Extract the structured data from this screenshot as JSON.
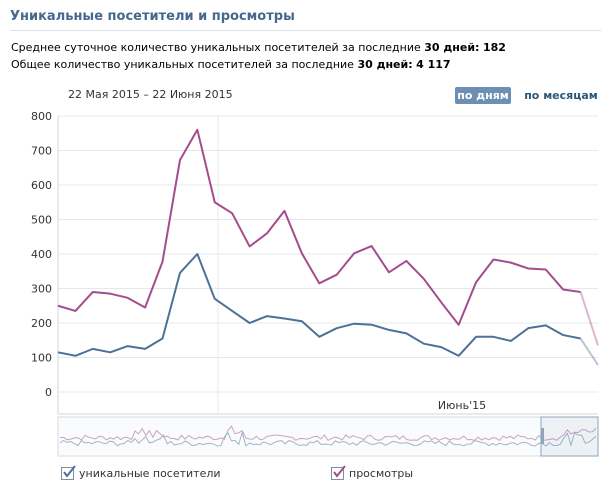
{
  "header": {
    "title": "Уникальные посетители и просмотры"
  },
  "stats": {
    "avg_prefix": "Среднее суточное количество уникальных посетителей за последние ",
    "avg_days": "30 дней:",
    "avg_value": "182",
    "total_prefix": "Общее количество уникальных посетителей за последние ",
    "total_days": "30 дней:",
    "total_value": "4 117"
  },
  "controls": {
    "date_range": "22 Мая 2015 – 22 Июня 2015",
    "by_day": "по дням",
    "by_month": "по месяцам"
  },
  "chart_data": {
    "type": "line",
    "ylim": [
      0,
      800
    ],
    "y_ticks": [
      "0",
      "100",
      "200",
      "300",
      "400",
      "500",
      "600",
      "700",
      "800"
    ],
    "x_tick_label": "Июнь'15",
    "series": [
      {
        "name": "уникальные посетители",
        "color": "#4d7198",
        "values": [
          115,
          105,
          125,
          115,
          133,
          125,
          155,
          345,
          400,
          270,
          235,
          200,
          220,
          213,
          205,
          160,
          185,
          198,
          195,
          180,
          170,
          140,
          130,
          105,
          160,
          160,
          148,
          185,
          193,
          165,
          155,
          78
        ]
      },
      {
        "name": "просмотры",
        "color": "#a44d8c",
        "values": [
          250,
          235,
          290,
          285,
          273,
          245,
          378,
          672,
          760,
          550,
          518,
          422,
          460,
          525,
          402,
          315,
          340,
          402,
          423,
          347,
          380,
          328,
          260,
          195,
          318,
          384,
          375,
          358,
          355,
          297,
          290,
          135
        ]
      }
    ]
  },
  "legend": {
    "visitors_label": "уникальные посетители",
    "views_label": "просмотры"
  }
}
